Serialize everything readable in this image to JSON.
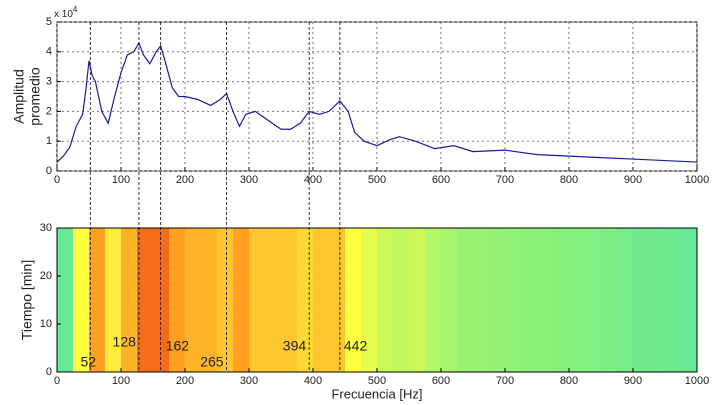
{
  "chart_data": [
    {
      "type": "line",
      "y_label": [
        "Amplitud",
        "promedio"
      ],
      "y_exponent_base": "x 10",
      "y_exponent": "4",
      "x": [
        0,
        10,
        20,
        30,
        40,
        45,
        50,
        55,
        60,
        70,
        80,
        90,
        100,
        110,
        120,
        128,
        135,
        145,
        155,
        162,
        170,
        180,
        190,
        200,
        220,
        240,
        255,
        265,
        275,
        285,
        295,
        310,
        330,
        350,
        365,
        380,
        394,
        410,
        425,
        442,
        455,
        465,
        480,
        500,
        520,
        535,
        560,
        590,
        620,
        650,
        700,
        750,
        800,
        850,
        900,
        950,
        1000
      ],
      "series": [
        {
          "color": "#1a1aa0",
          "values": [
            0.3,
            0.5,
            0.8,
            1.5,
            1.9,
            2.7,
            3.7,
            3.2,
            3.0,
            2.0,
            1.6,
            2.5,
            3.3,
            3.9,
            4.0,
            4.3,
            3.9,
            3.6,
            4.0,
            4.2,
            3.6,
            2.8,
            2.5,
            2.5,
            2.4,
            2.2,
            2.4,
            2.6,
            2.0,
            1.5,
            1.9,
            2.0,
            1.7,
            1.4,
            1.4,
            1.6,
            2.0,
            1.9,
            2.0,
            2.35,
            2.0,
            1.3,
            1.0,
            0.85,
            1.05,
            1.15,
            1.0,
            0.75,
            0.85,
            0.65,
            0.7,
            0.55,
            0.5,
            0.45,
            0.4,
            0.35,
            0.3
          ]
        }
      ],
      "xlim": [
        0,
        1000
      ],
      "xticks": [
        0,
        100,
        200,
        300,
        400,
        500,
        600,
        700,
        800,
        900,
        1000
      ],
      "ylim": [
        0,
        5
      ],
      "yticks": [
        0,
        1,
        2,
        3,
        4,
        5
      ],
      "grid": true
    },
    {
      "type": "heatmap",
      "x_label": "Frecuencia [Hz]",
      "y_label": "Tiempo [min]",
      "bins": [
        0,
        25,
        50,
        75,
        100,
        125,
        150,
        175,
        200,
        225,
        250,
        275,
        300,
        325,
        350,
        375,
        400,
        425,
        450,
        475,
        500,
        525,
        550,
        575,
        600,
        625,
        650,
        675,
        700,
        725,
        750,
        775,
        800,
        825,
        850,
        875,
        900,
        925,
        950,
        975,
        1000
      ],
      "intensity": [
        0.2,
        0.5,
        0.75,
        0.55,
        0.7,
        0.85,
        0.85,
        0.75,
        0.7,
        0.7,
        0.65,
        0.75,
        0.65,
        0.65,
        0.65,
        0.6,
        0.65,
        0.65,
        0.5,
        0.45,
        0.4,
        0.38,
        0.4,
        0.35,
        0.33,
        0.3,
        0.3,
        0.29,
        0.28,
        0.27,
        0.27,
        0.26,
        0.25,
        0.25,
        0.24,
        0.23,
        0.22,
        0.22,
        0.21,
        0.2
      ],
      "colormap": [
        "#00c8f0",
        "#80f080",
        "#ffff40",
        "#ffa020",
        "#e02010"
      ],
      "peaks": [
        52,
        128,
        162,
        265,
        394,
        442
      ],
      "xlim": [
        0,
        1000
      ],
      "xticks": [
        0,
        100,
        200,
        300,
        400,
        500,
        600,
        700,
        800,
        900,
        1000
      ],
      "ylim": [
        0,
        30
      ],
      "yticks": [
        0,
        10,
        20,
        30
      ]
    }
  ]
}
